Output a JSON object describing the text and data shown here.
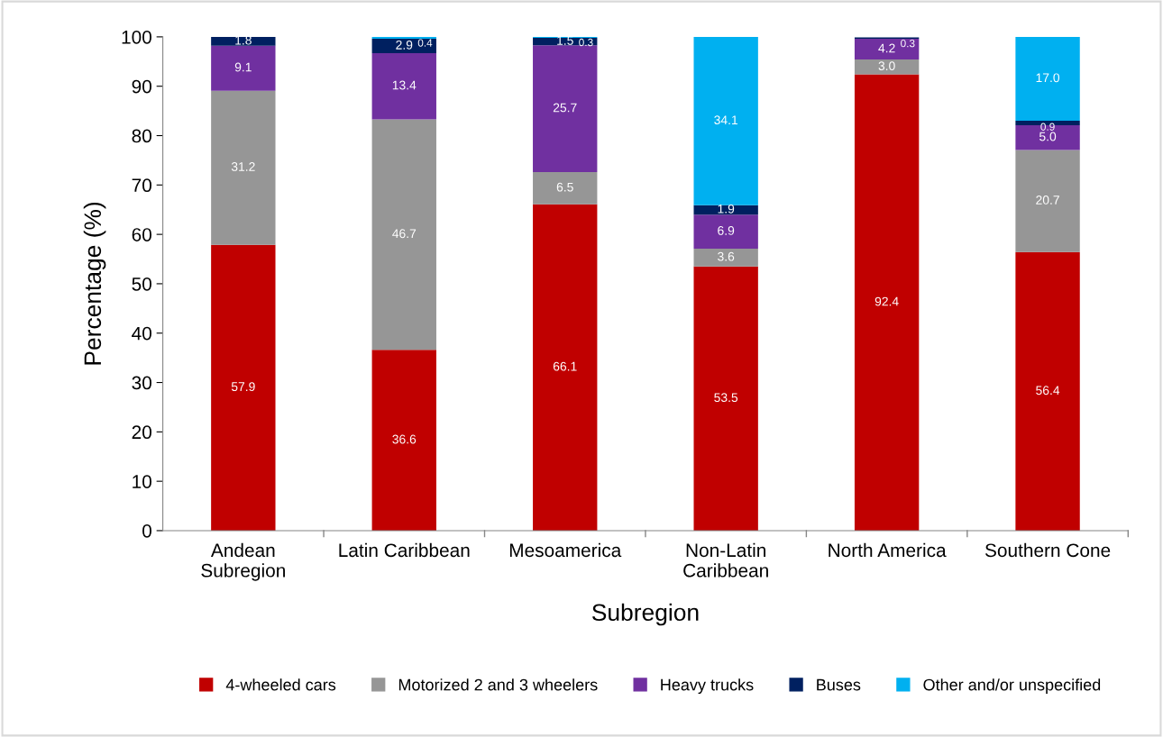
{
  "chart_data": {
    "type": "bar",
    "stacked": true,
    "xlabel": "Subregion",
    "ylabel": "Percentage (%)",
    "categories": [
      "Andean\nSubregion",
      "Latin Caribbean",
      "Mesoamerica",
      "Non-Latin\nCaribbean",
      "North America",
      "Southern Cone"
    ],
    "series": [
      {
        "name": "4-wheeled cars",
        "color": "#c00000",
        "values": [
          57.9,
          36.6,
          66.1,
          53.5,
          92.4,
          56.4
        ],
        "value_labels": [
          "57.9",
          "36.6",
          "66.1",
          "53.5",
          "92.4",
          "56.4"
        ]
      },
      {
        "name": "Motorized 2 and 3 wheelers",
        "color": "#969696",
        "values": [
          31.2,
          46.7,
          6.5,
          3.6,
          3.0,
          20.7
        ],
        "value_labels": [
          "31.2",
          "46.7",
          "6.5",
          "3.6",
          "3.0",
          "20.7"
        ]
      },
      {
        "name": "Heavy trucks",
        "color": "#7030a0",
        "values": [
          9.1,
          13.4,
          25.7,
          6.9,
          4.2,
          5.0
        ],
        "value_labels": [
          "9.1",
          "13.4",
          "25.7",
          "6.9",
          "4.2",
          "5.0"
        ]
      },
      {
        "name": "Buses",
        "color": "#002060",
        "values": [
          1.8,
          2.9,
          1.5,
          1.9,
          0.3,
          0.9
        ],
        "value_labels": [
          "1.8",
          "2.9",
          "1.5",
          "1.9",
          "0.3",
          "0.9"
        ]
      },
      {
        "name": "Other and/or unspecified",
        "color": "#00b0f0",
        "values": [
          null,
          0.4,
          0.3,
          34.1,
          null,
          17.0
        ],
        "value_labels": [
          null,
          "0.4",
          "0.3",
          "34.1",
          null,
          "17.0"
        ]
      }
    ],
    "ylim": [
      0,
      100
    ],
    "yticks": [
      0,
      10,
      20,
      30,
      40,
      50,
      60,
      70,
      80,
      90,
      100
    ],
    "grid": false,
    "legend": "bottom"
  }
}
